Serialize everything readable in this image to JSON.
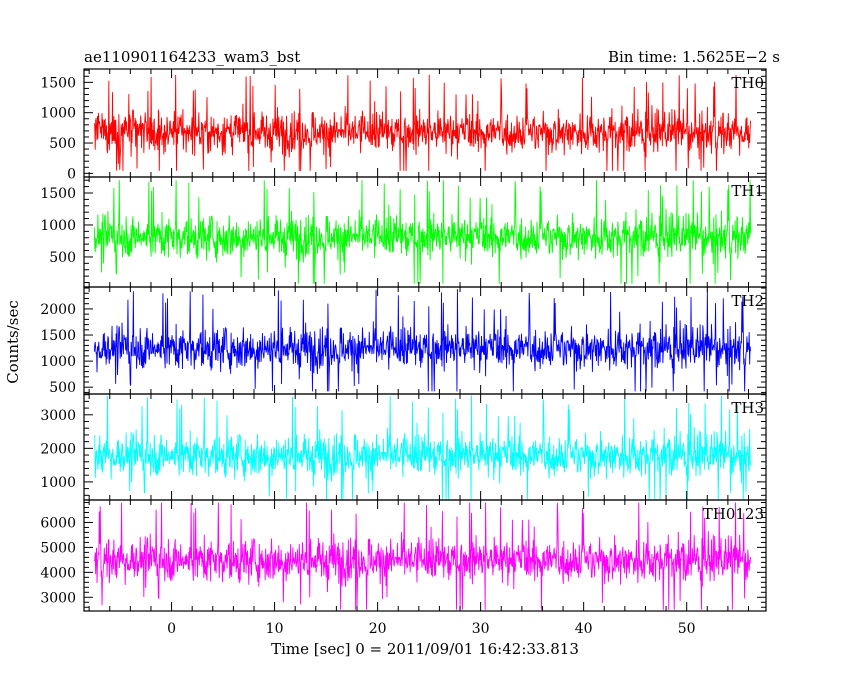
{
  "chart_data": {
    "type": "line",
    "title": "ae110901164233_wam3_bst",
    "subtitle": "Bin time: 1.5625E−2 s",
    "xlabel": "Time [sec] 0 = 2011/09/01 16:42:33.813",
    "ylabel": "Counts/sec",
    "xlim": [
      -8.5,
      57.7
    ],
    "x_ticks": [
      0,
      10,
      20,
      30,
      40,
      50
    ],
    "x_tick_labels": [
      "0",
      "10",
      "20",
      "30",
      "40",
      "50"
    ],
    "x_minor_step": 2,
    "data_range": [
      -7.5,
      56.2
    ],
    "panels": [
      {
        "name": "TH0",
        "color": "#ff0000",
        "ylim": [
          -60,
          1720
        ],
        "yticks": [
          0,
          500,
          1000,
          1500
        ],
        "ytick_labels": [
          "0",
          "500",
          "1000",
          "1500"
        ],
        "y_minor_step": 100,
        "mean": 680,
        "min": 40,
        "max": 1700
      },
      {
        "name": "TH1",
        "color": "#00ff00",
        "ylim": [
          30,
          1750
        ],
        "yticks": [
          500,
          1000,
          1500
        ],
        "ytick_labels": [
          "500",
          "1000",
          "1500"
        ],
        "y_minor_step": 100,
        "mean": 820,
        "min": 80,
        "max": 1700
      },
      {
        "name": "TH2",
        "color": "#0000ff",
        "ylim": [
          370,
          2420
        ],
        "yticks": [
          500,
          1000,
          1500,
          2000
        ],
        "ytick_labels": [
          "500",
          "1000",
          "1500",
          "2000"
        ],
        "y_minor_step": 100,
        "mean": 1250,
        "min": 420,
        "max": 2400
      },
      {
        "name": "TH3",
        "color": "#00ffff",
        "ylim": [
          460,
          3620
        ],
        "yticks": [
          1000,
          2000,
          3000
        ],
        "ytick_labels": [
          "1000",
          "2000",
          "3000"
        ],
        "y_minor_step": 200,
        "mean": 1800,
        "min": 480,
        "max": 3600
      },
      {
        "name": "TH0123",
        "color": "#ff00ff",
        "ylim": [
          2450,
          6900
        ],
        "yticks": [
          3000,
          4000,
          5000,
          6000
        ],
        "ytick_labels": [
          "3000",
          "4000",
          "5000",
          "6000"
        ],
        "y_minor_step": 200,
        "mean": 4500,
        "min": 2500,
        "max": 6800
      }
    ]
  }
}
